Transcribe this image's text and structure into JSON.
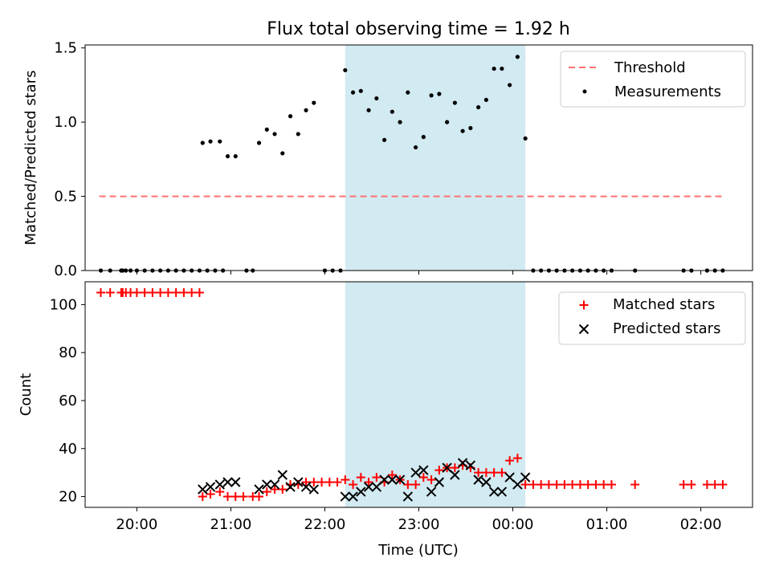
{
  "title": "Flux total observing time = 1.92 h",
  "colors": {
    "threshold": "#ff7070",
    "measurement": "#000000",
    "matched": "#ff0000",
    "predicted": "#000000",
    "highlight": "#add8e6"
  },
  "chart_data": [
    {
      "type": "scatter",
      "panel": "top",
      "ylabel": "Matched/Predicted stars",
      "xlim": [
        "19:27",
        "02:33"
      ],
      "ylim": [
        0,
        1.52
      ],
      "yticks": [
        "0.0",
        "0.5",
        "1.0",
        "1.5"
      ],
      "ytick_values": [
        0,
        0.5,
        1.0,
        1.5
      ],
      "highlight_span": [
        "22:13",
        "00:08"
      ],
      "legend": {
        "placement": "upper right",
        "entries": [
          "Threshold",
          "Measurements"
        ]
      },
      "threshold": {
        "name": "Threshold",
        "y": 0.5,
        "x_range": [
          "19:36",
          "02:14"
        ],
        "style": "dashed"
      },
      "series": [
        {
          "name": "Measurements",
          "points": [
            [
              "19:37",
              0
            ],
            [
              "19:43",
              0
            ],
            [
              "19:50",
              0
            ],
            [
              "19:51",
              0
            ],
            [
              "19:53",
              0
            ],
            [
              "19:56",
              0
            ],
            [
              "20:00",
              0
            ],
            [
              "20:05",
              0
            ],
            [
              "20:10",
              0
            ],
            [
              "20:15",
              0
            ],
            [
              "20:20",
              0
            ],
            [
              "20:25",
              0
            ],
            [
              "20:30",
              0
            ],
            [
              "20:35",
              0
            ],
            [
              "20:40",
              0
            ],
            [
              "20:45",
              0
            ],
            [
              "20:50",
              0
            ],
            [
              "20:55",
              0
            ],
            [
              "21:10",
              0
            ],
            [
              "21:14",
              0
            ],
            [
              "22:00",
              0
            ],
            [
              "22:05",
              0
            ],
            [
              "22:10",
              0
            ],
            [
              "20:42",
              0.86
            ],
            [
              "20:47",
              0.87
            ],
            [
              "20:53",
              0.87
            ],
            [
              "20:58",
              0.77
            ],
            [
              "21:03",
              0.77
            ],
            [
              "21:18",
              0.86
            ],
            [
              "21:23",
              0.95
            ],
            [
              "21:28",
              0.92
            ],
            [
              "21:33",
              0.79
            ],
            [
              "21:38",
              1.04
            ],
            [
              "21:43",
              0.92
            ],
            [
              "21:48",
              1.08
            ],
            [
              "21:53",
              1.13
            ],
            [
              "22:13",
              1.35
            ],
            [
              "22:18",
              1.2
            ],
            [
              "22:23",
              1.21
            ],
            [
              "22:28",
              1.08
            ],
            [
              "22:33",
              1.16
            ],
            [
              "22:38",
              0.88
            ],
            [
              "22:43",
              1.07
            ],
            [
              "22:48",
              1.0
            ],
            [
              "22:53",
              1.2
            ],
            [
              "22:58",
              0.83
            ],
            [
              "23:03",
              0.9
            ],
            [
              "23:08",
              1.18
            ],
            [
              "23:13",
              1.19
            ],
            [
              "23:18",
              1.0
            ],
            [
              "23:23",
              1.13
            ],
            [
              "23:28",
              0.94
            ],
            [
              "23:33",
              0.96
            ],
            [
              "23:38",
              1.1
            ],
            [
              "23:43",
              1.15
            ],
            [
              "23:48",
              1.36
            ],
            [
              "23:53",
              1.36
            ],
            [
              "23:58",
              1.25
            ],
            [
              "00:03",
              1.44
            ],
            [
              "00:08",
              0.89
            ],
            [
              "00:13",
              0
            ],
            [
              "00:18",
              0
            ],
            [
              "00:23",
              0
            ],
            [
              "00:28",
              0
            ],
            [
              "00:33",
              0
            ],
            [
              "00:38",
              0
            ],
            [
              "00:43",
              0
            ],
            [
              "00:48",
              0
            ],
            [
              "00:53",
              0
            ],
            [
              "00:58",
              0
            ],
            [
              "01:03",
              0
            ],
            [
              "01:18",
              0
            ],
            [
              "01:49",
              0
            ],
            [
              "01:54",
              0
            ],
            [
              "02:04",
              0
            ],
            [
              "02:09",
              0
            ],
            [
              "02:14",
              0
            ]
          ]
        }
      ]
    },
    {
      "type": "scatter",
      "panel": "bottom",
      "xlabel": "Time (UTC)",
      "ylabel": "Count",
      "xlim": [
        "19:27",
        "02:33"
      ],
      "ylim": [
        15.5,
        109.5
      ],
      "yticks": [
        "20",
        "40",
        "60",
        "80",
        "100"
      ],
      "ytick_values": [
        20,
        40,
        60,
        80,
        100
      ],
      "xticks": [
        "20:00",
        "21:00",
        "22:00",
        "23:00",
        "00:00",
        "01:00",
        "02:00"
      ],
      "xtick_values": [
        "20:00",
        "21:00",
        "22:00",
        "23:00",
        "00:00",
        "01:00",
        "02:00"
      ],
      "highlight_span": [
        "22:13",
        "00:08"
      ],
      "legend": {
        "placement": "upper right",
        "entries": [
          "Matched stars",
          "Predicted stars"
        ]
      },
      "series": [
        {
          "name": "Matched stars",
          "marker": "plus",
          "points": [
            [
              "19:37",
              105
            ],
            [
              "19:43",
              105
            ],
            [
              "19:50",
              105
            ],
            [
              "19:51",
              105
            ],
            [
              "19:53",
              105
            ],
            [
              "19:56",
              105
            ],
            [
              "20:00",
              105
            ],
            [
              "20:05",
              105
            ],
            [
              "20:10",
              105
            ],
            [
              "20:15",
              105
            ],
            [
              "20:20",
              105
            ],
            [
              "20:25",
              105
            ],
            [
              "20:30",
              105
            ],
            [
              "20:35",
              105
            ],
            [
              "20:40",
              105
            ],
            [
              "20:42",
              20
            ],
            [
              "20:47",
              21
            ],
            [
              "20:53",
              22
            ],
            [
              "20:58",
              20
            ],
            [
              "21:03",
              20
            ],
            [
              "21:08",
              20
            ],
            [
              "21:14",
              20
            ],
            [
              "21:18",
              20
            ],
            [
              "21:23",
              22
            ],
            [
              "21:28",
              23
            ],
            [
              "21:33",
              23
            ],
            [
              "21:38",
              25
            ],
            [
              "21:43",
              25
            ],
            [
              "21:48",
              26
            ],
            [
              "21:53",
              26
            ],
            [
              "21:58",
              26
            ],
            [
              "22:03",
              26
            ],
            [
              "22:08",
              26
            ],
            [
              "22:13",
              27
            ],
            [
              "22:18",
              25
            ],
            [
              "22:23",
              28
            ],
            [
              "22:28",
              26
            ],
            [
              "22:33",
              28
            ],
            [
              "22:38",
              26
            ],
            [
              "22:43",
              29
            ],
            [
              "22:48",
              27
            ],
            [
              "22:53",
              25
            ],
            [
              "22:58",
              25
            ],
            [
              "23:03",
              28
            ],
            [
              "23:08",
              27
            ],
            [
              "23:13",
              31
            ],
            [
              "23:18",
              32
            ],
            [
              "23:23",
              32
            ],
            [
              "23:28",
              33
            ],
            [
              "23:33",
              32
            ],
            [
              "23:38",
              30
            ],
            [
              "23:43",
              30
            ],
            [
              "23:48",
              30
            ],
            [
              "23:53",
              30
            ],
            [
              "23:58",
              35
            ],
            [
              "00:03",
              36
            ],
            [
              "00:08",
              25
            ],
            [
              "00:13",
              25
            ],
            [
              "00:18",
              25
            ],
            [
              "00:23",
              25
            ],
            [
              "00:28",
              25
            ],
            [
              "00:33",
              25
            ],
            [
              "00:38",
              25
            ],
            [
              "00:43",
              25
            ],
            [
              "00:48",
              25
            ],
            [
              "00:53",
              25
            ],
            [
              "00:58",
              25
            ],
            [
              "01:03",
              25
            ],
            [
              "01:18",
              25
            ],
            [
              "01:49",
              25
            ],
            [
              "01:54",
              25
            ],
            [
              "02:04",
              25
            ],
            [
              "02:09",
              25
            ],
            [
              "02:14",
              25
            ]
          ]
        },
        {
          "name": "Predicted stars",
          "marker": "x",
          "points": [
            [
              "20:42",
              23
            ],
            [
              "20:47",
              24
            ],
            [
              "20:53",
              25
            ],
            [
              "20:58",
              26
            ],
            [
              "21:03",
              26
            ],
            [
              "21:18",
              23
            ],
            [
              "21:23",
              25
            ],
            [
              "21:28",
              25
            ],
            [
              "21:33",
              29
            ],
            [
              "21:38",
              24
            ],
            [
              "21:43",
              26
            ],
            [
              "21:48",
              24
            ],
            [
              "21:53",
              23
            ],
            [
              "22:13",
              20
            ],
            [
              "22:18",
              20
            ],
            [
              "22:23",
              22
            ],
            [
              "22:28",
              24
            ],
            [
              "22:33",
              24
            ],
            [
              "22:38",
              27
            ],
            [
              "22:43",
              27
            ],
            [
              "22:48",
              27
            ],
            [
              "22:53",
              20
            ],
            [
              "22:58",
              30
            ],
            [
              "23:03",
              31
            ],
            [
              "23:08",
              22
            ],
            [
              "23:13",
              26
            ],
            [
              "23:18",
              32
            ],
            [
              "23:23",
              29
            ],
            [
              "23:28",
              34
            ],
            [
              "23:33",
              33
            ],
            [
              "23:38",
              27
            ],
            [
              "23:43",
              26
            ],
            [
              "23:48",
              22
            ],
            [
              "23:53",
              22
            ],
            [
              "23:58",
              28
            ],
            [
              "00:03",
              25
            ],
            [
              "00:08",
              28
            ]
          ]
        }
      ]
    }
  ]
}
